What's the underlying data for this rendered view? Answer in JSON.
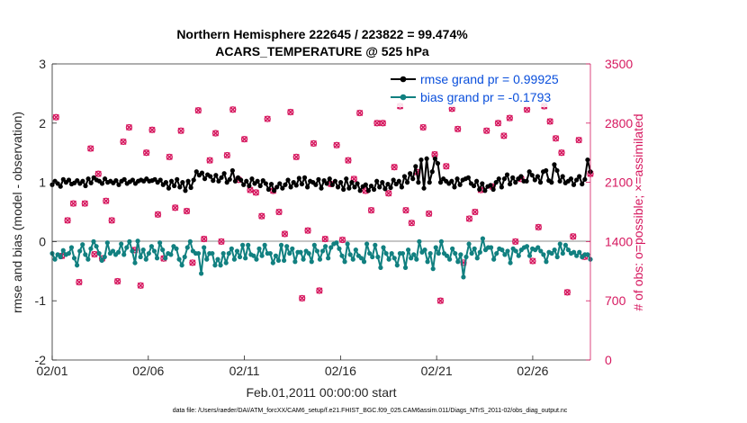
{
  "chart_data": {
    "type": "line",
    "title": [
      "Northern Hemisphere 222645 / 223822 = 99.474%",
      "ACARS_TEMPERATURE @ 525 hPa"
    ],
    "xlabel": "Feb.01,2011 00:00:00 start",
    "ylabel": "rmse and bias (model - observation)",
    "ylabel_right": "# of obs: o=possible; ×=assimilated",
    "footer": "data file: /Users/raeder/DAI/ATM_forcXX/CAM6_setup/f.e21.FHIST_BGC.f09_025.CAM6assim.011/Diags_NTrS_2011-02/obs_diag_output.nc",
    "x_ticks": [
      {
        "label": "02/01",
        "day": 0
      },
      {
        "label": "02/06",
        "day": 5
      },
      {
        "label": "02/11",
        "day": 10
      },
      {
        "label": "02/16",
        "day": 15
      },
      {
        "label": "02/21",
        "day": 20
      },
      {
        "label": "02/26",
        "day": 25
      }
    ],
    "xlim": [
      0,
      28
    ],
    "ylim": [
      -2,
      3
    ],
    "yticks": [
      "-2",
      "-1",
      "0",
      "1",
      "2",
      "3"
    ],
    "ylim_right": [
      0,
      3500
    ],
    "yticks_right": [
      "0",
      "700",
      "1400",
      "2100",
      "2800",
      "3500"
    ],
    "colors": {
      "rmse": "#000000",
      "bias": "#118080",
      "obs": "#d6185f",
      "zero_line": "#b4b4b4",
      "legend_text": "#0a4fdc"
    },
    "series": [
      {
        "name": "rmse grand pr = 0.99925",
        "key": "rmse",
        "values": [
          0.96,
          1.02,
          0.98,
          0.93,
          1.05,
          1.0,
          1.04,
          0.97,
          0.99,
          1.03,
          0.98,
          1.02,
          0.94,
          1.06,
          0.99,
          1.08,
          1.04,
          1.02,
          0.98,
          1.06,
          1.0,
          1.02,
          0.99,
          1.03,
          0.96,
          1.02,
          1.05,
          0.98,
          1.01,
          1.04,
          0.98,
          1.02,
          1.04,
          1.02,
          1.06,
          1.02,
          1.03,
          1.05,
          1.0,
          1.04,
          0.96,
          1.0,
          0.9,
          1.02,
          0.94,
          1.05,
          0.92,
          1.0,
          0.86,
          1.02,
          0.91,
          1.04,
          1.18,
          1.12,
          1.16,
          1.06,
          1.13,
          1.1,
          1.03,
          1.12,
          1.02,
          1.08,
          1.15,
          1.0,
          1.05,
          1.2,
          1.02,
          1.08,
          1.04,
          0.96,
          1.02,
          0.94,
          1.06,
          0.98,
          1.02,
          0.94,
          1.03,
          0.98,
          0.88,
          0.97,
          0.86,
          0.92,
          0.98,
          0.9,
          0.96,
          1.04,
          0.92,
          1.0,
          0.95,
          1.07,
          0.97,
          1.08,
          0.92,
          1.02,
          1.0,
          0.96,
          1.05,
          0.9,
          1.03,
          0.98,
          1.06,
          0.96,
          1.02,
          0.92,
          1.0,
          0.88,
          1.06,
          0.9,
          1.0,
          0.92,
          0.98,
          0.86,
          0.93,
          0.96,
          0.86,
          0.94,
          0.88,
          1.02,
          0.92,
          1.0,
          0.89,
          0.97,
          0.91,
          1.04,
          0.97,
          1.02,
          0.92,
          1.1,
          1.0,
          1.15,
          1.06,
          1.27,
          1.0,
          1.38,
          0.9,
          1.4,
          1.0,
          1.18,
          1.4,
          1.32,
          1.0,
          1.06,
          1.02,
          0.98,
          1.02,
          0.92,
          1.06,
          0.96,
          1.04,
          1.06,
          1.08,
          0.98,
          0.94,
          1.02,
          0.88,
          0.98,
          0.86,
          0.93,
          0.95,
          0.88,
          1.0,
          1.06,
          0.92,
          1.06,
          1.13,
          0.97,
          1.08,
          1.0,
          1.06,
          1.1,
          1.02,
          1.02,
          1.18,
          1.12,
          1.04,
          1.1,
          1.0,
          1.18,
          1.2,
          1.03,
          1.0,
          1.3,
          1.2,
          1.02,
          1.1,
          0.99,
          1.02,
          1.06,
          0.96,
          1.04,
          1.1,
          0.97,
          1.05,
          1.38,
          1.18
        ]
      },
      {
        "name": "bias grand pr = -0.1793",
        "key": "bias",
        "values": [
          -0.2,
          -0.3,
          -0.22,
          -0.26,
          -0.15,
          -0.22,
          -0.2,
          -0.1,
          -0.28,
          -0.4,
          -0.16,
          -0.05,
          -0.22,
          -0.3,
          -0.12,
          0.0,
          -0.08,
          -0.2,
          -0.32,
          -0.26,
          -0.02,
          -0.2,
          -0.16,
          -0.22,
          -0.18,
          -0.04,
          -0.22,
          -0.1,
          0.0,
          -0.16,
          -0.36,
          0.01,
          -0.26,
          -0.14,
          -0.3,
          -0.2,
          -0.08,
          -0.16,
          -0.28,
          -0.02,
          -0.14,
          -0.28,
          -0.2,
          -0.22,
          -0.08,
          -0.12,
          -0.3,
          -0.4,
          -0.26,
          -0.1,
          0.0,
          -0.16,
          -0.2,
          -0.2,
          -0.54,
          -0.1,
          -0.3,
          -0.2,
          -0.2,
          -0.4,
          -0.3,
          -0.4,
          -0.2,
          -0.36,
          -0.2,
          -0.12,
          -0.3,
          -0.16,
          -0.26,
          -0.06,
          -0.28,
          -0.06,
          -0.22,
          -0.24,
          -0.3,
          -0.12,
          -0.24,
          -0.06,
          -0.2,
          -0.2,
          -0.36,
          -0.24,
          -0.32,
          -0.06,
          -0.32,
          -0.08,
          -0.2,
          -0.12,
          -0.34,
          -0.18,
          -0.18,
          -0.3,
          -0.16,
          -0.2,
          -0.34,
          -0.06,
          -0.16,
          -0.3,
          -0.16,
          -0.08,
          -0.28,
          -0.1,
          -0.04,
          -0.02,
          -0.12,
          -0.24,
          -0.34,
          -0.04,
          -0.22,
          -0.3,
          -0.14,
          -0.24,
          -0.28,
          -0.34,
          -0.04,
          -0.2,
          -0.26,
          -0.06,
          -0.26,
          -0.44,
          -0.1,
          -0.2,
          -0.3,
          -0.2,
          -0.28,
          -0.4,
          -0.2,
          -0.2,
          -0.44,
          -0.14,
          -0.28,
          -0.22,
          -0.3,
          0.0,
          -0.18,
          -0.14,
          -0.34,
          -0.2,
          -0.46,
          -0.1,
          -0.2,
          0.0,
          -0.2,
          -0.24,
          -0.3,
          -0.12,
          -0.2,
          -0.34,
          -0.22,
          -0.6,
          -0.26,
          -0.04,
          -0.2,
          -0.12,
          -0.28,
          -0.18,
          0.05,
          -0.14,
          -0.1,
          -0.1,
          -0.3,
          -0.2,
          -0.12,
          -0.14,
          -0.22,
          -0.16,
          -0.36,
          -0.12,
          -0.16,
          -0.24,
          -0.14,
          -0.1,
          -0.08,
          -0.24,
          -0.12,
          -0.14,
          -0.1,
          -0.16,
          -0.22,
          -0.34,
          -0.18,
          -0.2,
          -0.14,
          -0.26,
          -0.04,
          -0.2,
          -0.06,
          -0.14,
          -0.2,
          -0.18,
          -0.24,
          -0.18,
          -0.26,
          -0.22,
          -0.22,
          -0.3
        ]
      }
    ],
    "obs_counts": {
      "name": "# of obs",
      "day": [
        0.2,
        0.5,
        0.8,
        1.1,
        1.4,
        1.7,
        2.0,
        2.2,
        2.4,
        2.6,
        2.8,
        3.1,
        3.4,
        3.7,
        4.0,
        4.3,
        4.6,
        4.9,
        5.2,
        5.5,
        5.8,
        6.1,
        6.4,
        6.7,
        7.0,
        7.3,
        7.6,
        7.9,
        8.2,
        8.5,
        8.8,
        9.1,
        9.4,
        9.7,
        10.0,
        10.3,
        10.6,
        10.9,
        11.2,
        11.5,
        11.8,
        12.1,
        12.4,
        12.7,
        13.0,
        13.3,
        13.6,
        13.9,
        14.2,
        14.5,
        14.8,
        15.1,
        15.4,
        15.7,
        16.0,
        16.3,
        16.6,
        16.9,
        17.2,
        17.5,
        17.8,
        18.1,
        18.4,
        18.7,
        19.0,
        19.3,
        19.6,
        19.9,
        20.2,
        20.5,
        20.8,
        21.1,
        21.4,
        21.7,
        22.0,
        22.3,
        22.6,
        22.9,
        23.2,
        23.5,
        23.8,
        24.1,
        24.4,
        24.7,
        25.0,
        25.3,
        25.6,
        25.9,
        26.2,
        26.5,
        26.8,
        27.1,
        27.4,
        27.7,
        28.0
      ],
      "possible": [
        2870,
        1230,
        1650,
        1850,
        920,
        1850,
        2500,
        1250,
        2200,
        1200,
        1880,
        1650,
        930,
        2580,
        2750,
        1300,
        880,
        2450,
        2720,
        1720,
        1200,
        2400,
        1800,
        2710,
        1760,
        1150,
        2950,
        1430,
        2360,
        2680,
        1400,
        2420,
        2960,
        2130,
        2610,
        2010,
        1980,
        1700,
        2850,
        2000,
        1750,
        1490,
        2930,
        2400,
        730,
        1530,
        2560,
        820,
        1430,
        2080,
        2540,
        1420,
        2360,
        2140,
        2920,
        2000,
        1770,
        2800,
        2800,
        1970,
        2280,
        3000,
        1770,
        1620,
        2220,
        2750,
        1730,
        2430,
        700,
        2290,
        2970,
        2730,
        1150,
        1670,
        1750,
        2010,
        2710,
        2050,
        2800,
        2650,
        2860,
        1400,
        2140,
        2960,
        1170,
        1570,
        3000,
        2820,
        2620,
        2450,
        800,
        1460,
        2600,
        1220,
        2200
      ]
    },
    "legend": {
      "rmse_label": "rmse grand pr = 0.99925",
      "bias_label": "bias grand pr = -0.1793"
    }
  }
}
